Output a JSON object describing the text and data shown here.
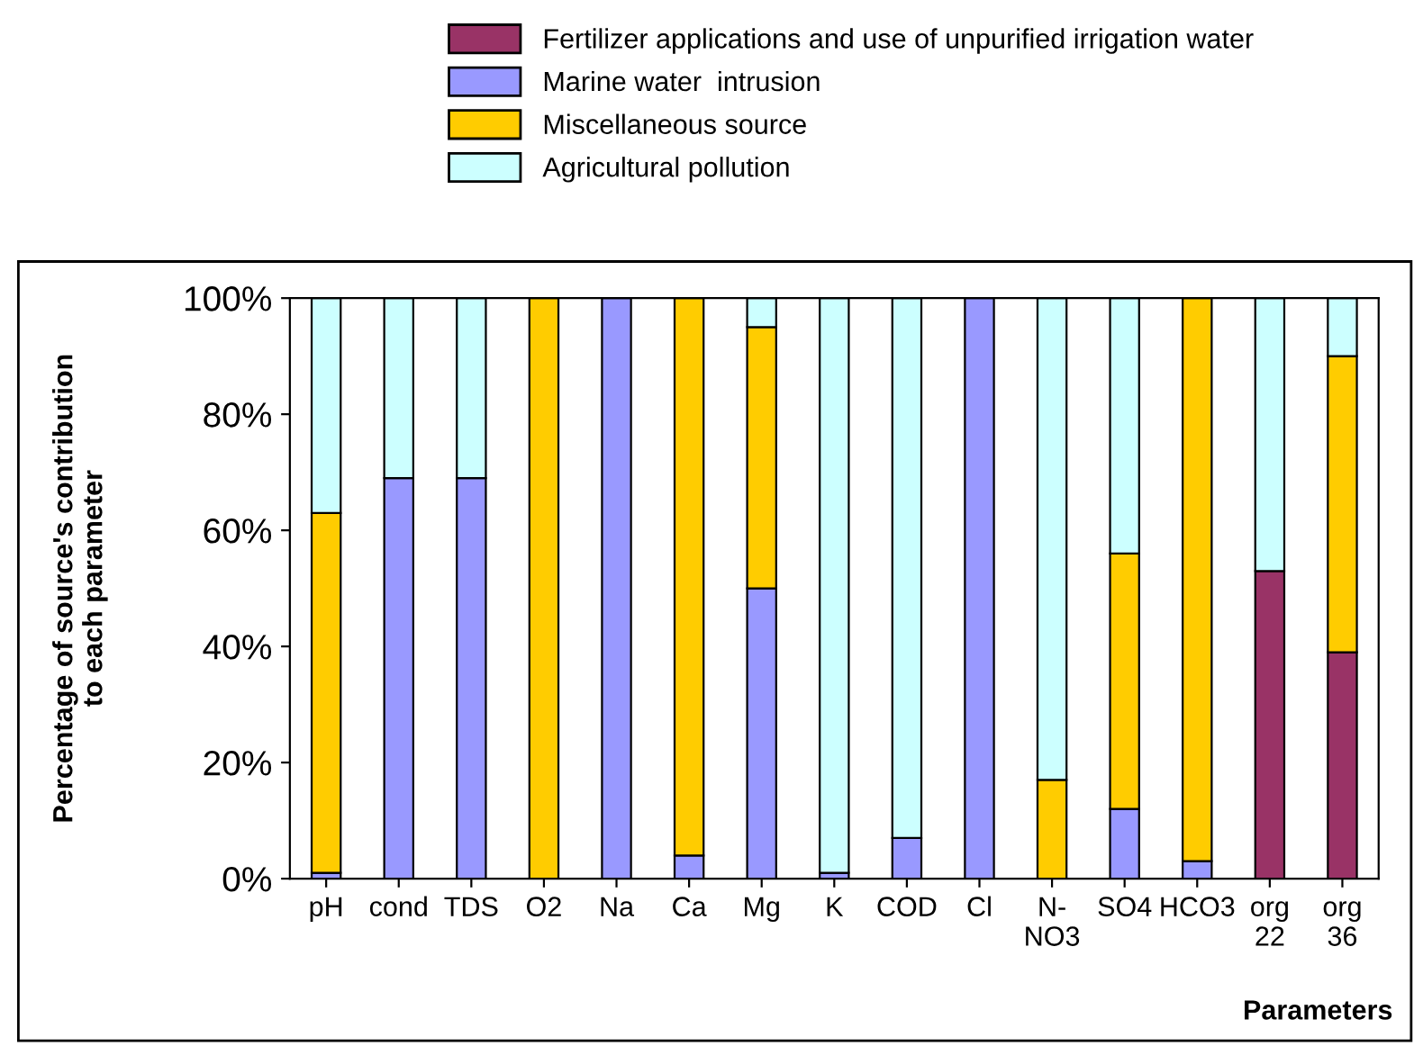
{
  "chart_data": {
    "type": "bar",
    "stacked": true,
    "xlabel": "Parameters",
    "ylabel": "Percentage of source's contribution\nto each parameter",
    "categories": [
      "pH",
      "cond",
      "TDS",
      "O2",
      "Na",
      "Ca",
      "Mg",
      "K",
      "COD",
      "Cl",
      "N-\nNO3",
      "SO4",
      "HCO3",
      "org\n22",
      "org\n36"
    ],
    "series": [
      {
        "name": "Fertilizer applications and use of unpurified irrigation water",
        "color": "#993366",
        "values": [
          null,
          null,
          null,
          null,
          null,
          null,
          null,
          null,
          null,
          null,
          null,
          null,
          null,
          53,
          39
        ]
      },
      {
        "name": "Marine water  intrusion",
        "color": "#9999ff",
        "values": [
          1,
          69,
          69,
          null,
          100,
          4,
          50,
          1,
          7,
          100,
          null,
          12,
          3,
          null,
          null
        ]
      },
      {
        "name": "Miscellaneous source",
        "color": "#ffcc00",
        "values": [
          62,
          null,
          null,
          100,
          null,
          96,
          45,
          null,
          null,
          null,
          17,
          44,
          97,
          null,
          51
        ]
      },
      {
        "name": "Agricultural pollution",
        "color": "#ccffff",
        "values": [
          37,
          31,
          31,
          null,
          null,
          null,
          5,
          99,
          93,
          null,
          83,
          44,
          null,
          47,
          10
        ]
      }
    ],
    "ylim": [
      0,
      100
    ],
    "yticks": [
      {
        "value": 0,
        "label": "0%"
      },
      {
        "value": 20,
        "label": "20%"
      },
      {
        "value": 40,
        "label": "40%"
      },
      {
        "value": 60,
        "label": "60%"
      },
      {
        "value": 80,
        "label": "80%"
      },
      {
        "value": 100,
        "label": "100%"
      }
    ],
    "legend": "top",
    "grid": false
  }
}
